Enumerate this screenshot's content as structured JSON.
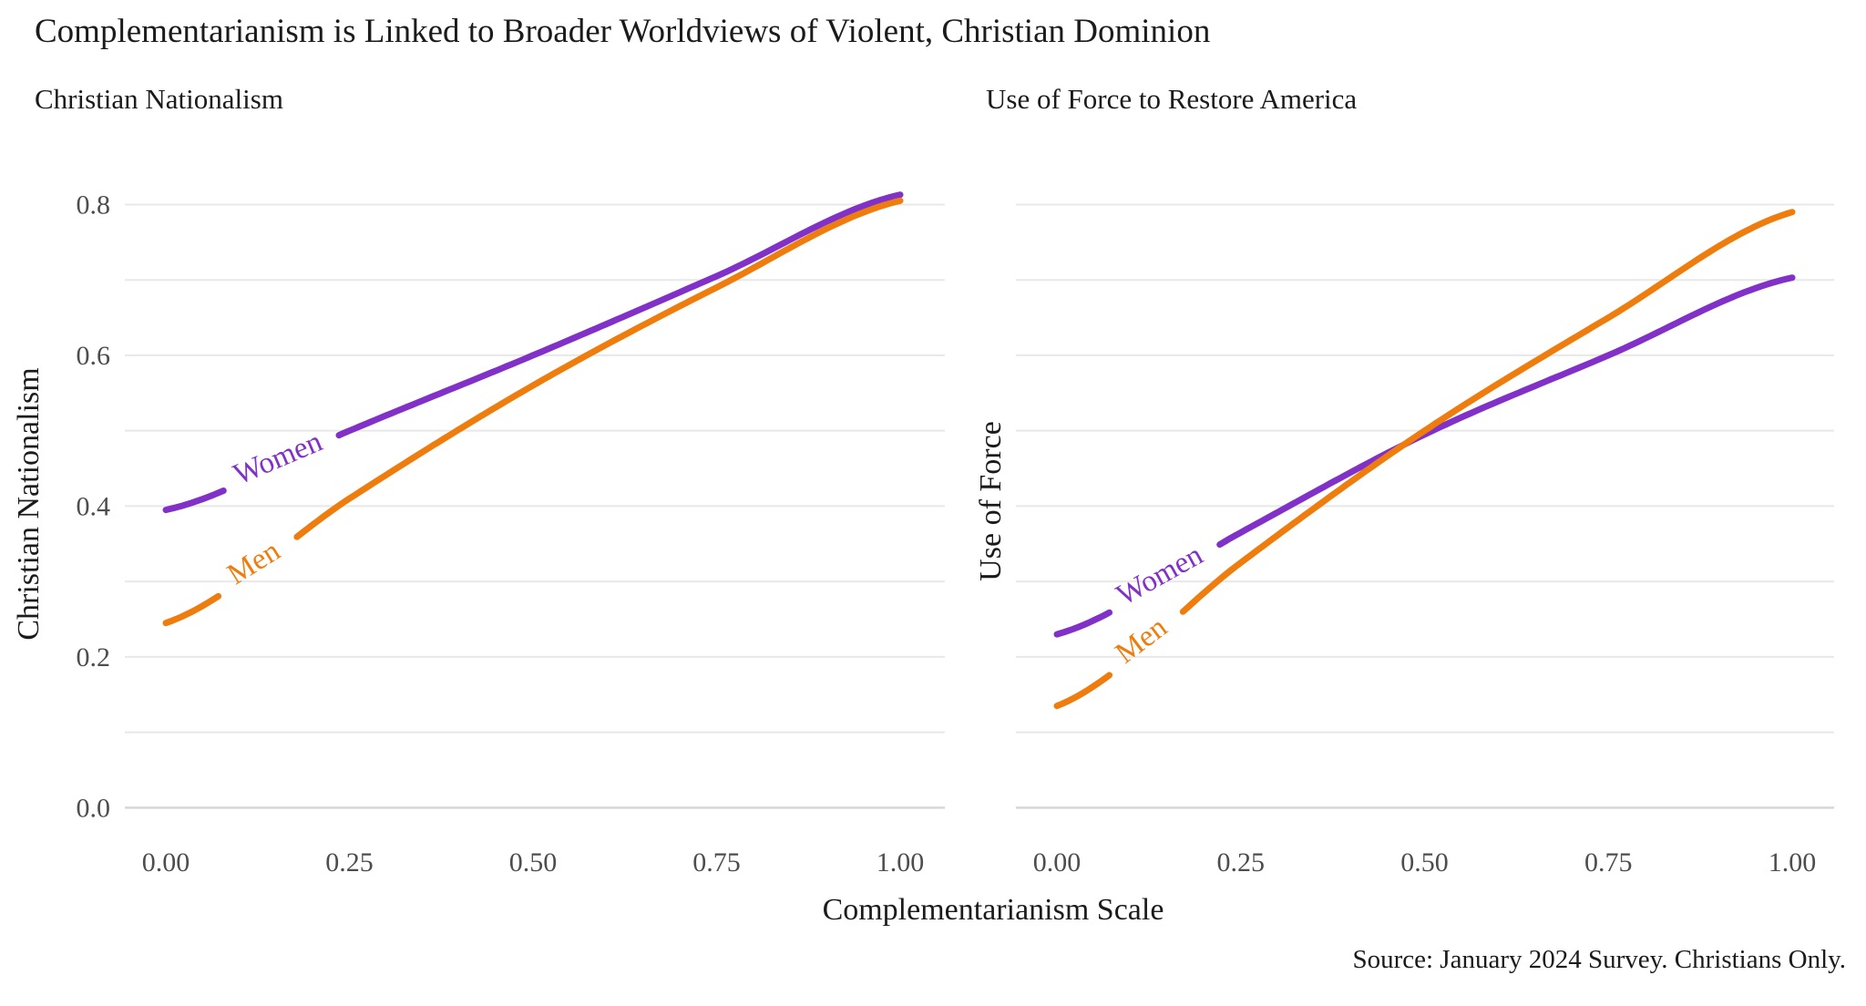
{
  "page": {
    "title": "Complementarianism is Linked to Broader Worldviews of Violent, Christian Dominion",
    "xlabel": "Complementarianism Scale",
    "source": "Source: January 2024 Survey. Christians Only."
  },
  "colors": {
    "women": "#8130C8",
    "men": "#EE7D0E",
    "grid": "#E8E8E8",
    "zero_grid": "#D8D8D8",
    "tick_text": "#4D4D4D",
    "title_text": "#1B1B1B"
  },
  "chart_data": [
    {
      "type": "line",
      "panel": "left",
      "subtitle": "Christian Nationalism",
      "ylabel": "Christian Nationalism",
      "x": [
        0,
        0.25,
        0.5,
        0.75,
        1.0
      ],
      "series": [
        {
          "name": "Women",
          "color_key": "women",
          "values": [
            0.395,
            0.5,
            0.6,
            0.705,
            0.813
          ],
          "label_gap": [
            0.08,
            0.235
          ],
          "label_angle": -23
        },
        {
          "name": "Men",
          "color_key": "men",
          "values": [
            0.245,
            0.41,
            0.56,
            0.69,
            0.805
          ],
          "label_gap": [
            0.078,
            0.175
          ],
          "label_angle": -32
        }
      ],
      "xticks": [
        "0.00",
        "0.25",
        "0.50",
        "0.75",
        "1.00"
      ],
      "yticks": [
        "0.0",
        "0.2",
        "0.4",
        "0.6",
        "0.8"
      ],
      "ylim": [
        0,
        0.8
      ],
      "grid_step": 0.1,
      "grid": true,
      "legend": "inline-line-labels"
    },
    {
      "type": "line",
      "panel": "right",
      "subtitle": "Use of Force to Restore America",
      "ylabel": "Use of Force",
      "x": [
        0,
        0.25,
        0.5,
        0.75,
        1.0
      ],
      "series": [
        {
          "name": "Women",
          "color_key": "women",
          "values": [
            0.23,
            0.365,
            0.495,
            0.6,
            0.703
          ],
          "label_gap": [
            0.072,
            0.22
          ],
          "label_angle": -29
        },
        {
          "name": "Men",
          "color_key": "men",
          "values": [
            0.135,
            0.325,
            0.5,
            0.65,
            0.79
          ],
          "label_gap": [
            0.077,
            0.168
          ],
          "label_angle": -37
        }
      ],
      "xticks": [
        "0.00",
        "0.25",
        "0.50",
        "0.75",
        "1.00"
      ],
      "yticks": [],
      "ylim": [
        0,
        0.8
      ],
      "grid_step": 0.1,
      "grid": true,
      "legend": "inline-line-labels"
    }
  ]
}
